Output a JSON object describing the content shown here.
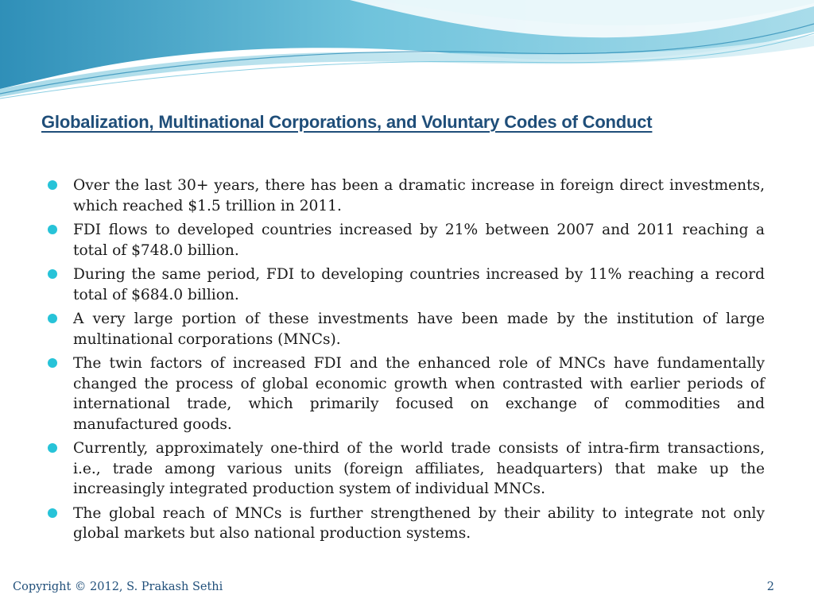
{
  "slide": {
    "title": "Globalization, Multinational Corporations, and Voluntary Codes of Conduct",
    "bullets": [
      "Over the last 30+ years, there has been a dramatic increase in foreign direct investments, which reached $1.5 trillion in 2011.",
      "FDI flows to developed countries increased by 21% between 2007 and 2011 reaching a total of $748.0 billion.",
      "During the same period, FDI to developing countries increased by 11% reaching a record total of $684.0 billion.",
      "A very large portion of these investments have been made by the institution of large multinational corporations (MNCs).",
      "The twin factors of increased FDI and the enhanced role of MNCs have fundamentally changed the process of global economic growth when contrasted with earlier periods of international trade, which primarily focused on exchange of commodities and manufactured goods.",
      "Currently, approximately one-third of the world trade consists of intra-firm transactions, i.e., trade among various units (foreign affiliates, headquarters) that make up the increasingly integrated production system of individual MNCs.",
      "The global reach of MNCs is further strengthened by their ability to integrate not only global markets but also national production systems."
    ],
    "footer": {
      "copyright": "Copyright © 2012, S. Prakash Sethi",
      "page_number": "2"
    }
  },
  "colors": {
    "title": "#1f4e79",
    "bullet": "#27c3d8",
    "wave_light": "#bfe6ef",
    "wave_mid": "#6fc3dc",
    "wave_dark": "#2f8fb8"
  }
}
